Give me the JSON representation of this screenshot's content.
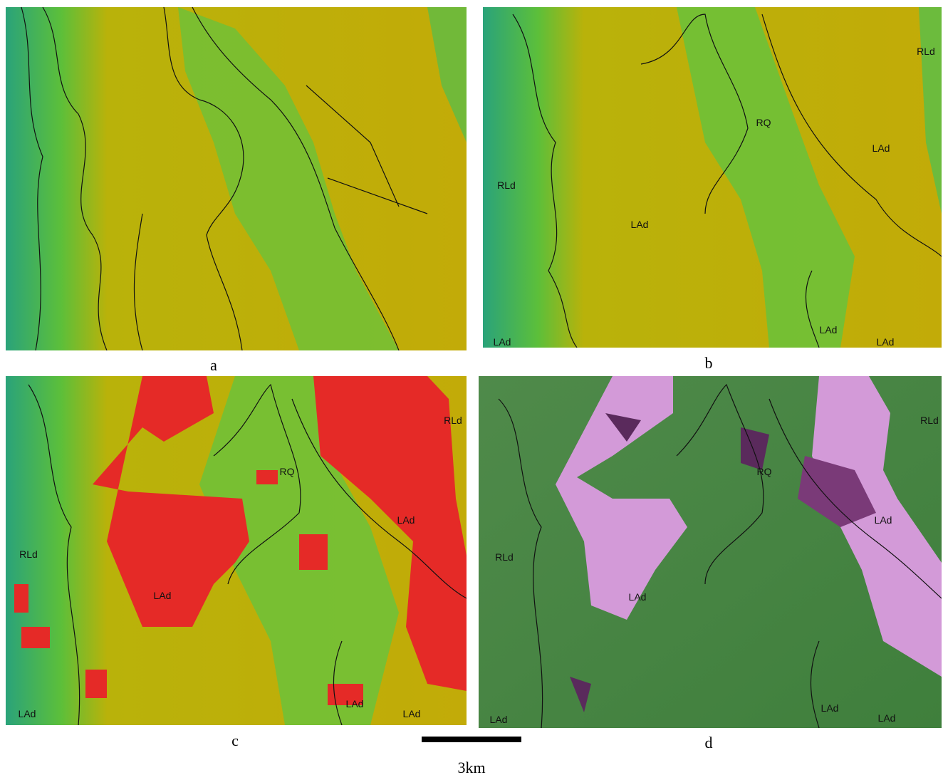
{
  "panels": [
    {
      "caption": "a"
    },
    {
      "caption": "b",
      "labels": [
        "RLd",
        "RQ",
        "LAd",
        "RLd",
        "LAd",
        "LAd",
        "LAd",
        "LAd"
      ]
    },
    {
      "caption": "c",
      "labels": [
        "RLd",
        "RQ",
        "LAd",
        "RLd",
        "LAd",
        "LAd",
        "LAd",
        "LAd"
      ]
    },
    {
      "caption": "d",
      "labels": [
        "RLd",
        "RQ",
        "LAd",
        "RLd",
        "LAd",
        "LAd",
        "LAd",
        "LAd"
      ]
    }
  ],
  "scale_bar": {
    "label": "3km"
  }
}
